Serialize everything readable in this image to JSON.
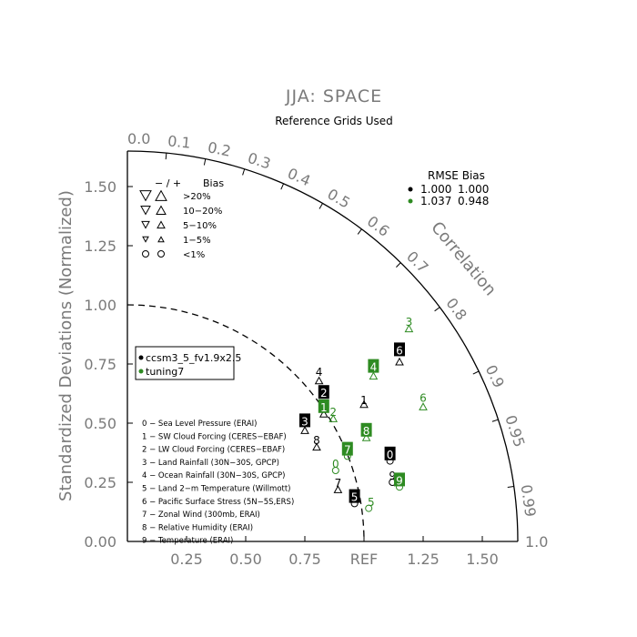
{
  "chart_data": {
    "type": "taylor",
    "title": "JJA: SPACE",
    "subtitle": "Reference Grids Used",
    "ylabel": "Standardized Deviations (Normalized)",
    "correlation_label": "Correlation",
    "x_ticks": [
      "0.25",
      "0.50",
      "0.75",
      "REF",
      "1.25",
      "1.50"
    ],
    "x_tick_values": [
      0.25,
      0.5,
      0.75,
      1.0,
      1.25,
      1.5
    ],
    "y_ticks": [
      "0.00",
      "0.25",
      "0.50",
      "0.75",
      "1.00",
      "1.25",
      "1.50"
    ],
    "y_tick_values": [
      0,
      0.25,
      0.5,
      0.75,
      1.0,
      1.25,
      1.5
    ],
    "max_sd": 1.65,
    "end_label": "1.0",
    "corr_ticks": [
      {
        "label": "0.0",
        "r": 0.0
      },
      {
        "label": "0.1",
        "r": 0.1
      },
      {
        "label": "0.2",
        "r": 0.2
      },
      {
        "label": "0.3",
        "r": 0.3
      },
      {
        "label": "0.4",
        "r": 0.4
      },
      {
        "label": "0.5",
        "r": 0.5
      },
      {
        "label": "0.6",
        "r": 0.6
      },
      {
        "label": "0.7",
        "r": 0.7
      },
      {
        "label": "0.8",
        "r": 0.8
      },
      {
        "label": "0.9",
        "r": 0.9
      },
      {
        "label": "0.95",
        "r": 0.95
      },
      {
        "label": "0.99",
        "r": 0.99
      }
    ],
    "bias_legend": {
      "header_signs": "− / +",
      "header_bias": "Bias",
      "rows": [
        ">20%",
        "10−20%",
        "5−10%",
        "1−5%",
        "<1%"
      ]
    },
    "rmse_legend": {
      "header": "RMSE Bias",
      "rows": [
        {
          "rmse": "1.000",
          "bias": "1.000",
          "color": "#000000"
        },
        {
          "rmse": "1.037",
          "bias": "0.948",
          "color": "#2e8b22"
        }
      ]
    },
    "series": [
      {
        "name": "ccsm3_5_fv1.9x2.5",
        "color": "#000000",
        "points": [
          {
            "label": "0",
            "x": 1.11,
            "y": 0.37,
            "marker_x": 1.11,
            "marker_y": 0.34,
            "marker": "circle"
          },
          {
            "label": "1",
            "x": 1.0,
            "y": 0.6,
            "marker_x": 1.0,
            "marker_y": 0.58,
            "marker": "tri-up"
          },
          {
            "label": "2",
            "x": 0.83,
            "y": 0.63,
            "marker_x": 0.83,
            "marker_y": 0.54,
            "marker": "tri-up"
          },
          {
            "label": "3",
            "x": 0.75,
            "y": 0.51,
            "marker_x": 0.75,
            "marker_y": 0.47,
            "marker": "tri-up"
          },
          {
            "label": "4",
            "x": 0.81,
            "y": 0.72,
            "marker_x": 0.81,
            "marker_y": 0.68,
            "marker": "tri-up"
          },
          {
            "label": "5",
            "x": 0.96,
            "y": 0.19,
            "marker_x": 0.96,
            "marker_y": 0.16,
            "marker": "circle"
          },
          {
            "label": "6",
            "x": 1.15,
            "y": 0.81,
            "marker_x": 1.15,
            "marker_y": 0.76,
            "marker": "tri-up"
          },
          {
            "label": "7",
            "x": 0.89,
            "y": 0.25,
            "marker_x": 0.89,
            "marker_y": 0.22,
            "marker": "tri-up"
          },
          {
            "label": "8",
            "x": 0.8,
            "y": 0.43,
            "marker_x": 0.8,
            "marker_y": 0.4,
            "marker": "tri-up"
          },
          {
            "label": "9",
            "x": 1.12,
            "y": 0.28,
            "marker_x": 1.12,
            "marker_y": 0.25,
            "marker": "circle"
          }
        ]
      },
      {
        "name": "tuning7",
        "color": "#2e8b22",
        "points": [
          {
            "label": "0",
            "x": 0.88,
            "y": 0.33,
            "marker_x": 0.88,
            "marker_y": 0.3,
            "marker": "circle"
          },
          {
            "label": "1",
            "x": 0.83,
            "y": 0.57,
            "marker_x": 0.83,
            "marker_y": 0.56,
            "marker": "tri-up"
          },
          {
            "label": "2",
            "x": 0.87,
            "y": 0.55,
            "marker_x": 0.87,
            "marker_y": 0.52,
            "marker": "tri-up"
          },
          {
            "label": "3",
            "x": 1.19,
            "y": 0.93,
            "marker_x": 1.19,
            "marker_y": 0.9,
            "marker": "tri-up"
          },
          {
            "label": "4",
            "x": 1.04,
            "y": 0.74,
            "marker_x": 1.04,
            "marker_y": 0.7,
            "marker": "tri-up"
          },
          {
            "label": "5",
            "x": 1.03,
            "y": 0.17,
            "marker_x": 1.02,
            "marker_y": 0.14,
            "marker": "circle"
          },
          {
            "label": "6",
            "x": 1.25,
            "y": 0.61,
            "marker_x": 1.25,
            "marker_y": 0.57,
            "marker": "tri-up"
          },
          {
            "label": "7",
            "x": 0.93,
            "y": 0.39,
            "marker_x": 0.93,
            "marker_y": 0.36,
            "marker": "circle"
          },
          {
            "label": "8",
            "x": 1.01,
            "y": 0.47,
            "marker_x": 1.01,
            "marker_y": 0.44,
            "marker": "tri-up"
          },
          {
            "label": "9",
            "x": 1.15,
            "y": 0.26,
            "marker_x": 1.15,
            "marker_y": 0.23,
            "marker": "circle"
          }
        ]
      }
    ],
    "variables": [
      "0 − Sea Level Pressure (ERAI)",
      "1 − SW Cloud Forcing (CERES−EBAF)",
      "2 − LW Cloud Forcing (CERES−EBAF)",
      "3 − Land Rainfall (30N−30S, GPCP)",
      "4 − Ocean Rainfall (30N−30S, GPCP)",
      "5 − Land 2−m Temperature (Willmott)",
      "6 − Pacific Surface Stress (5N−5S,ERS)",
      "7 − Zonal Wind (300mb, ERAI)",
      "8 − Relative Humidity (ERAI)",
      "9 − Temperature (ERAI)"
    ]
  }
}
